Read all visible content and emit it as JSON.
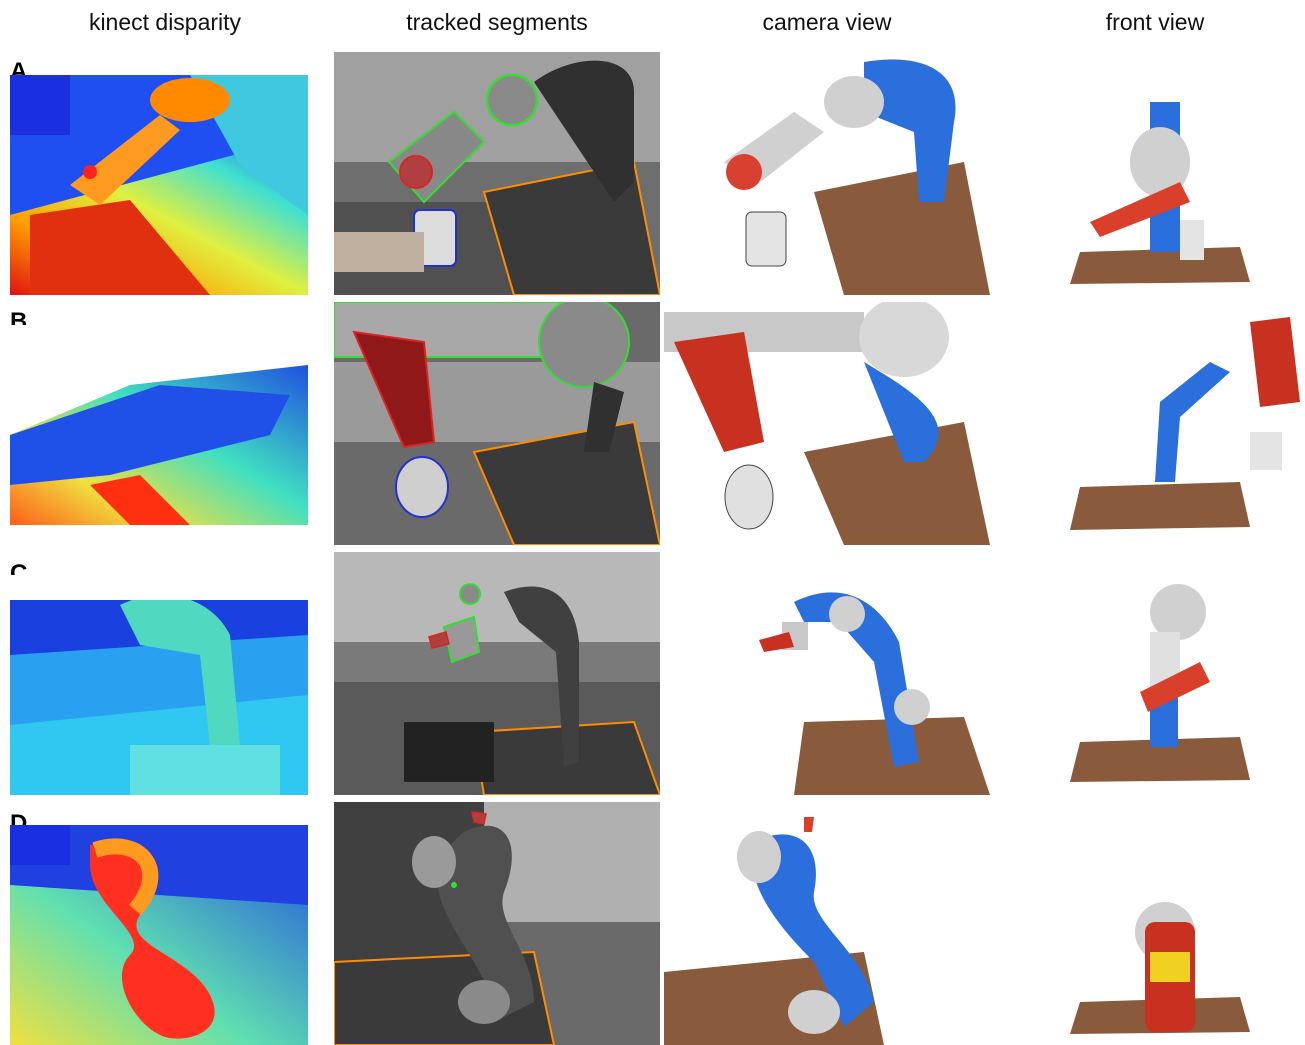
{
  "figure": {
    "column_headers": [
      "kinect disparity",
      "tracked segments",
      "camera view",
      "front view"
    ],
    "row_labels": [
      "A",
      "B",
      "C",
      "D"
    ]
  },
  "colors": {
    "robot_arm": "#2a6fdc",
    "robot_joint": "#d0d0d0",
    "table_texture": "#8a5a3c",
    "outline_gripper": "#33dd33",
    "outline_bottle": "#dd2222",
    "outline_mug": "#2233cc",
    "outline_table": "#ff8c00"
  }
}
